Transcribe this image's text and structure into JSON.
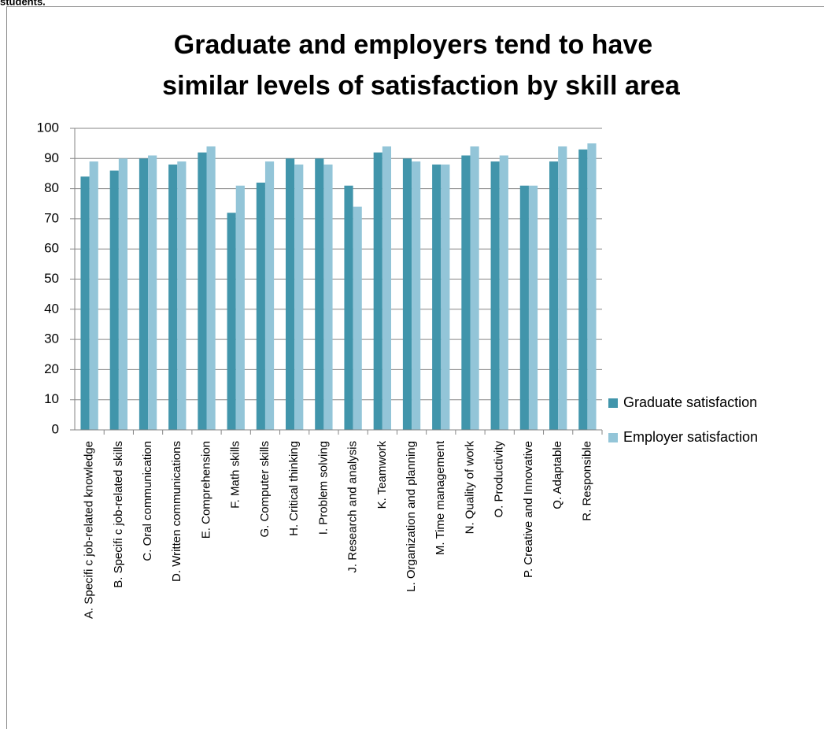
{
  "header_text": "students.",
  "chart_data": {
    "type": "bar",
    "title": [
      "Graduate and employers tend to have",
      "similar levels of satisfaction by skill area"
    ],
    "categories": [
      "A. Specifi c job-related knowledge",
      "B. Specifi c job-related skills",
      "C. Oral communication",
      "D. Written communications",
      "E. Comprehension",
      "F. Math skills",
      "G. Computer skills",
      "H. Critical thinking",
      "I. Problem solving",
      "J. Research and analysis",
      "K. Teamwork",
      "L. Organization and planning",
      "M. Time management",
      "N. Quality of work",
      "O. Productivity",
      "P. Creative and Innovative",
      "Q. Adaptable",
      "R. Responsible"
    ],
    "series": [
      {
        "name": "Graduate satisfaction",
        "color": "#4195ab",
        "values": [
          84,
          86,
          90,
          88,
          92,
          72,
          82,
          90,
          90,
          81,
          92,
          90,
          88,
          91,
          89,
          81,
          89,
          93
        ]
      },
      {
        "name": "Employer satisfaction",
        "color": "#93c5d8",
        "values": [
          89,
          90,
          91,
          89,
          94,
          81,
          89,
          88,
          88,
          74,
          94,
          89,
          88,
          94,
          91,
          81,
          94,
          95
        ]
      }
    ],
    "ylim": [
      0,
      100
    ],
    "yticks": [
      0,
      10,
      20,
      30,
      40,
      50,
      60,
      70,
      80,
      90,
      100
    ],
    "grid": true,
    "legend": "right"
  }
}
